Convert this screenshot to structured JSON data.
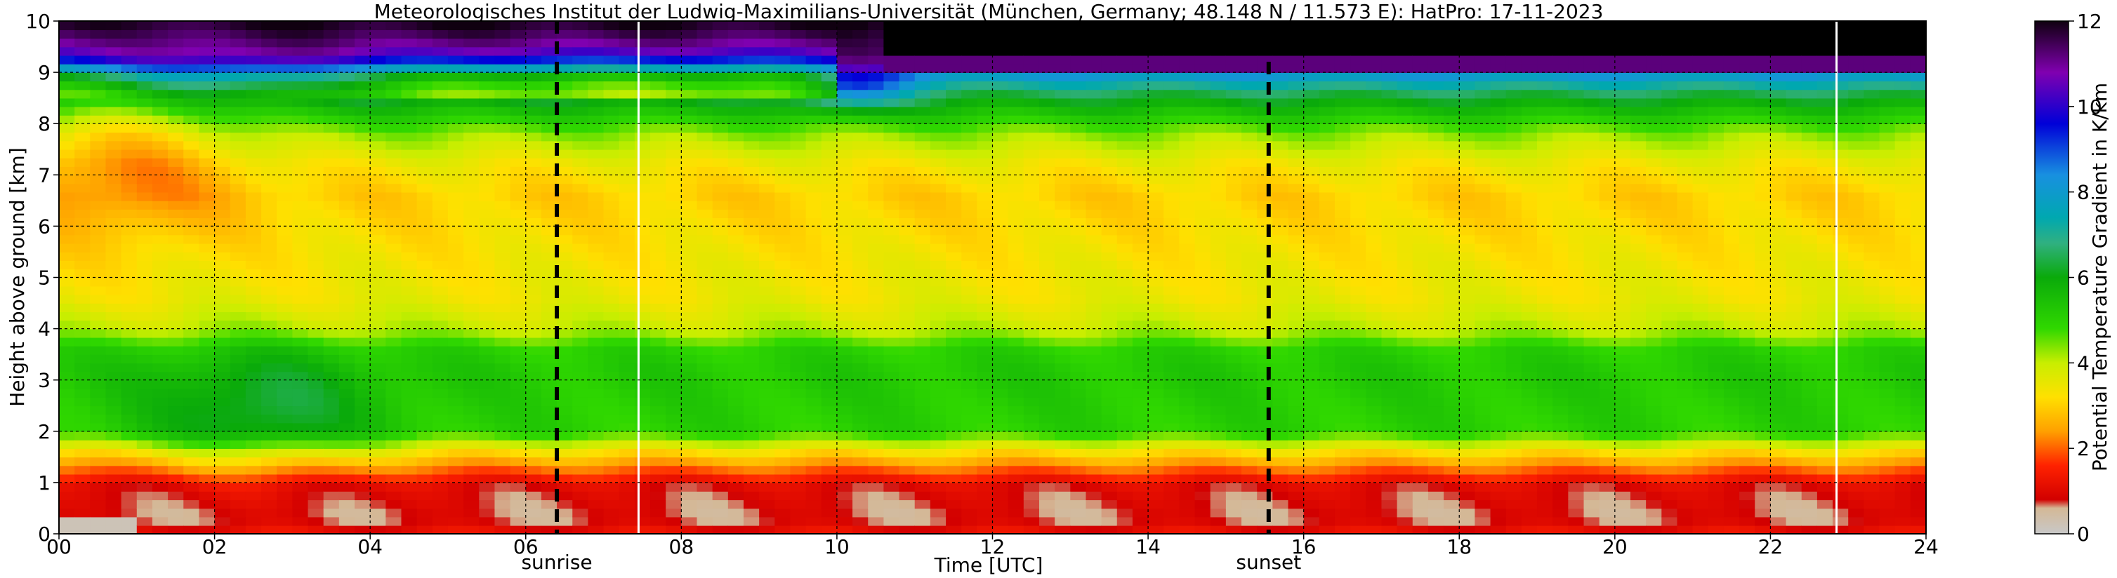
{
  "chart_data": {
    "type": "heatmap",
    "title": "Meteorologisches Institut der Ludwig-Maximilians-Universität (München, Germany; 48.148 N / 11.573 E):    HatPro: 17-11-2023",
    "xlabel": "Time [UTC]",
    "ylabel": "Height above ground [km]",
    "xlim": [
      0,
      24
    ],
    "ylim": [
      0,
      10
    ],
    "x_ticks": [
      "00",
      "02",
      "04",
      "06",
      "08",
      "10",
      "12",
      "14",
      "16",
      "18",
      "20",
      "22",
      "24"
    ],
    "y_ticks": [
      "0",
      "1",
      "2",
      "3",
      "4",
      "5",
      "6",
      "7",
      "8",
      "9",
      "10"
    ],
    "grid": true,
    "colorbar": {
      "label": "Potential Temperature Gradient in K/km",
      "ticks": [
        "0",
        "2",
        "4",
        "6",
        "8",
        "10",
        "12"
      ],
      "range": [
        0,
        12
      ],
      "stops": [
        {
          "v": 0.0,
          "c": "#c8c8c8"
        },
        {
          "v": 0.6,
          "c": "#d4b896"
        },
        {
          "v": 0.8,
          "c": "#d20000"
        },
        {
          "v": 1.6,
          "c": "#ff2200"
        },
        {
          "v": 2.4,
          "c": "#ffa000"
        },
        {
          "v": 3.2,
          "c": "#ffe000"
        },
        {
          "v": 4.0,
          "c": "#c8ee00"
        },
        {
          "v": 4.8,
          "c": "#30d800"
        },
        {
          "v": 6.0,
          "c": "#0aaa0a"
        },
        {
          "v": 6.8,
          "c": "#30b080"
        },
        {
          "v": 7.4,
          "c": "#00a8b0"
        },
        {
          "v": 8.4,
          "c": "#1890e0"
        },
        {
          "v": 9.6,
          "c": "#0000d8"
        },
        {
          "v": 10.8,
          "c": "#8000b0"
        },
        {
          "v": 12.0,
          "c": "#100010"
        }
      ]
    },
    "field": {
      "base_profile": [
        {
          "h": 0.0,
          "v": 1.2
        },
        {
          "h": 0.3,
          "v": 0.7
        },
        {
          "h": 0.9,
          "v": 0.9
        },
        {
          "h": 1.2,
          "v": 1.8
        },
        {
          "h": 1.6,
          "v": 3.2
        },
        {
          "h": 2.0,
          "v": 5.0
        },
        {
          "h": 3.2,
          "v": 5.2
        },
        {
          "h": 3.6,
          "v": 5.0
        },
        {
          "h": 4.0,
          "v": 4.0
        },
        {
          "h": 4.6,
          "v": 3.5
        },
        {
          "h": 5.5,
          "v": 3.3
        },
        {
          "h": 6.6,
          "v": 3.0
        },
        {
          "h": 7.2,
          "v": 3.4
        },
        {
          "h": 7.8,
          "v": 4.3
        },
        {
          "h": 8.3,
          "v": 5.6
        },
        {
          "h": 8.6,
          "v": 6.5
        },
        {
          "h": 8.9,
          "v": 7.8
        },
        {
          "h": 9.1,
          "v": 9.5
        },
        {
          "h": 9.3,
          "v": 11.0
        },
        {
          "h": 10.0,
          "v": 12.0
        }
      ],
      "missing_data_top_from_hour": 10.5,
      "missing_data_height_km": 9.3
    },
    "annotations": [
      {
        "label": "sunrise",
        "x": 6.4,
        "style": "dashed"
      },
      {
        "label": "sunset",
        "x": 15.55,
        "style": "dashed"
      }
    ],
    "white_lines_x": [
      7.45,
      22.85
    ]
  }
}
